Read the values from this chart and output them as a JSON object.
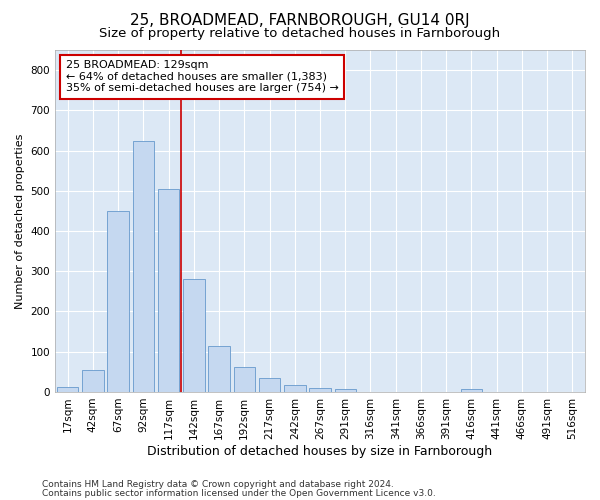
{
  "title": "25, BROADMEAD, FARNBOROUGH, GU14 0RJ",
  "subtitle": "Size of property relative to detached houses in Farnborough",
  "xlabel": "Distribution of detached houses by size in Farnborough",
  "ylabel": "Number of detached properties",
  "bar_labels": [
    "17sqm",
    "42sqm",
    "67sqm",
    "92sqm",
    "117sqm",
    "142sqm",
    "167sqm",
    "192sqm",
    "217sqm",
    "242sqm",
    "267sqm",
    "291sqm",
    "316sqm",
    "341sqm",
    "366sqm",
    "391sqm",
    "416sqm",
    "441sqm",
    "466sqm",
    "491sqm",
    "516sqm"
  ],
  "bar_values": [
    12,
    55,
    450,
    625,
    505,
    280,
    115,
    62,
    35,
    18,
    10,
    8,
    0,
    0,
    0,
    0,
    7,
    0,
    0,
    0,
    0
  ],
  "bar_color": "#c5d8f0",
  "bar_edge_color": "#6699cc",
  "vline_color": "#cc0000",
  "vline_pos": 4.48,
  "ylim": [
    0,
    850
  ],
  "yticks": [
    0,
    100,
    200,
    300,
    400,
    500,
    600,
    700,
    800
  ],
  "annotation_line1": "25 BROADMEAD: 129sqm",
  "annotation_line2": "← 64% of detached houses are smaller (1,383)",
  "annotation_line3": "35% of semi-detached houses are larger (754) →",
  "annotation_box_facecolor": "#ffffff",
  "annotation_box_edgecolor": "#cc0000",
  "footnote1": "Contains HM Land Registry data © Crown copyright and database right 2024.",
  "footnote2": "Contains public sector information licensed under the Open Government Licence v3.0.",
  "fig_facecolor": "#ffffff",
  "plot_facecolor": "#dce8f5",
  "grid_color": "#ffffff",
  "title_fontsize": 11,
  "subtitle_fontsize": 9.5,
  "xlabel_fontsize": 9,
  "ylabel_fontsize": 8,
  "tick_fontsize": 7.5,
  "annot_fontsize": 8,
  "footnote_fontsize": 6.5
}
